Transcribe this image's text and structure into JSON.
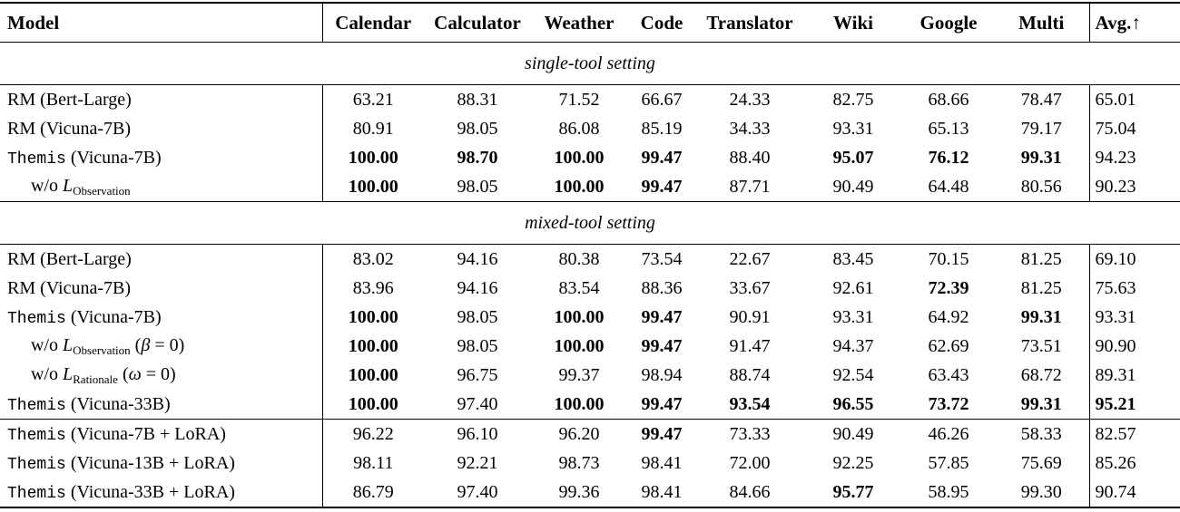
{
  "table": {
    "columns": [
      "Model",
      "Calendar",
      "Calculator",
      "Weather",
      "Code",
      "Translator",
      "Wiki",
      "Google",
      "Multi",
      "Avg.↑"
    ],
    "sections": [
      {
        "title": "single-tool setting",
        "rows": [
          {
            "indent": false,
            "segments": [
              {
                "t": "RM (Bert-Large)",
                "s": "rm"
              }
            ],
            "cells": [
              {
                "v": "63.21",
                "b": false
              },
              {
                "v": "88.31",
                "b": false
              },
              {
                "v": "71.52",
                "b": false
              },
              {
                "v": "66.67",
                "b": false
              },
              {
                "v": "24.33",
                "b": false
              },
              {
                "v": "82.75",
                "b": false
              },
              {
                "v": "68.66",
                "b": false
              },
              {
                "v": "78.47",
                "b": false
              },
              {
                "v": "65.01",
                "b": false
              }
            ]
          },
          {
            "indent": false,
            "segments": [
              {
                "t": "RM (Vicuna-7B)",
                "s": "rm"
              }
            ],
            "cells": [
              {
                "v": "80.91",
                "b": false
              },
              {
                "v": "98.05",
                "b": false
              },
              {
                "v": "86.08",
                "b": false
              },
              {
                "v": "85.19",
                "b": false
              },
              {
                "v": "34.33",
                "b": false
              },
              {
                "v": "93.31",
                "b": false
              },
              {
                "v": "65.13",
                "b": false
              },
              {
                "v": "79.17",
                "b": false
              },
              {
                "v": "75.04",
                "b": false
              }
            ]
          },
          {
            "indent": false,
            "segments": [
              {
                "t": "Themis",
                "s": "tt"
              },
              {
                "t": " (Vicuna-7B)",
                "s": "rm"
              }
            ],
            "cells": [
              {
                "v": "100.00",
                "b": true
              },
              {
                "v": "98.70",
                "b": true
              },
              {
                "v": "100.00",
                "b": true
              },
              {
                "v": "99.47",
                "b": true
              },
              {
                "v": "88.40",
                "b": false
              },
              {
                "v": "95.07",
                "b": true
              },
              {
                "v": "76.12",
                "b": true
              },
              {
                "v": "99.31",
                "b": true
              },
              {
                "v": "94.23",
                "b": false
              }
            ]
          },
          {
            "indent": true,
            "segments": [
              {
                "t": "w/o ",
                "s": "rm"
              },
              {
                "t": "L",
                "s": "it"
              },
              {
                "t": "Observation",
                "s": "sub"
              }
            ],
            "cells": [
              {
                "v": "100.00",
                "b": true
              },
              {
                "v": "98.05",
                "b": false
              },
              {
                "v": "100.00",
                "b": true
              },
              {
                "v": "99.47",
                "b": true
              },
              {
                "v": "87.71",
                "b": false
              },
              {
                "v": "90.49",
                "b": false
              },
              {
                "v": "64.48",
                "b": false
              },
              {
                "v": "80.56",
                "b": false
              },
              {
                "v": "90.23",
                "b": false
              }
            ]
          }
        ]
      },
      {
        "title": "mixed-tool setting",
        "rows": [
          {
            "indent": false,
            "segments": [
              {
                "t": "RM (Bert-Large)",
                "s": "rm"
              }
            ],
            "cells": [
              {
                "v": "83.02",
                "b": false
              },
              {
                "v": "94.16",
                "b": false
              },
              {
                "v": "80.38",
                "b": false
              },
              {
                "v": "73.54",
                "b": false
              },
              {
                "v": "22.67",
                "b": false
              },
              {
                "v": "83.45",
                "b": false
              },
              {
                "v": "70.15",
                "b": false
              },
              {
                "v": "81.25",
                "b": false
              },
              {
                "v": "69.10",
                "b": false
              }
            ]
          },
          {
            "indent": false,
            "segments": [
              {
                "t": "RM (Vicuna-7B)",
                "s": "rm"
              }
            ],
            "cells": [
              {
                "v": "83.96",
                "b": false
              },
              {
                "v": "94.16",
                "b": false
              },
              {
                "v": "83.54",
                "b": false
              },
              {
                "v": "88.36",
                "b": false
              },
              {
                "v": "33.67",
                "b": false
              },
              {
                "v": "92.61",
                "b": false
              },
              {
                "v": "72.39",
                "b": true
              },
              {
                "v": "81.25",
                "b": false
              },
              {
                "v": "75.63",
                "b": false
              }
            ]
          },
          {
            "indent": false,
            "segments": [
              {
                "t": "Themis",
                "s": "tt"
              },
              {
                "t": " (Vicuna-7B)",
                "s": "rm"
              }
            ],
            "cells": [
              {
                "v": "100.00",
                "b": true
              },
              {
                "v": "98.05",
                "b": false
              },
              {
                "v": "100.00",
                "b": true
              },
              {
                "v": "99.47",
                "b": true
              },
              {
                "v": "90.91",
                "b": false
              },
              {
                "v": "93.31",
                "b": false
              },
              {
                "v": "64.92",
                "b": false
              },
              {
                "v": "99.31",
                "b": true
              },
              {
                "v": "93.31",
                "b": false
              }
            ]
          },
          {
            "indent": true,
            "segments": [
              {
                "t": "w/o ",
                "s": "rm"
              },
              {
                "t": "L",
                "s": "it"
              },
              {
                "t": "Observation",
                "s": "sub"
              },
              {
                "t": " (",
                "s": "rm"
              },
              {
                "t": "β",
                "s": "it"
              },
              {
                "t": " = 0)",
                "s": "rm"
              }
            ],
            "cells": [
              {
                "v": "100.00",
                "b": true
              },
              {
                "v": "98.05",
                "b": false
              },
              {
                "v": "100.00",
                "b": true
              },
              {
                "v": "99.47",
                "b": true
              },
              {
                "v": "91.47",
                "b": false
              },
              {
                "v": "94.37",
                "b": false
              },
              {
                "v": "62.69",
                "b": false
              },
              {
                "v": "73.51",
                "b": false
              },
              {
                "v": "90.90",
                "b": false
              }
            ]
          },
          {
            "indent": true,
            "segments": [
              {
                "t": "w/o ",
                "s": "rm"
              },
              {
                "t": "L",
                "s": "it"
              },
              {
                "t": "Rationale",
                "s": "sub"
              },
              {
                "t": " (",
                "s": "rm"
              },
              {
                "t": "ω",
                "s": "it"
              },
              {
                "t": " = 0)",
                "s": "rm"
              }
            ],
            "cells": [
              {
                "v": "100.00",
                "b": true
              },
              {
                "v": "96.75",
                "b": false
              },
              {
                "v": "99.37",
                "b": false
              },
              {
                "v": "98.94",
                "b": false
              },
              {
                "v": "88.74",
                "b": false
              },
              {
                "v": "92.54",
                "b": false
              },
              {
                "v": "63.43",
                "b": false
              },
              {
                "v": "68.72",
                "b": false
              },
              {
                "v": "89.31",
                "b": false
              }
            ]
          },
          {
            "indent": false,
            "segments": [
              {
                "t": "Themis",
                "s": "tt"
              },
              {
                "t": " (Vicuna-33B)",
                "s": "rm"
              }
            ],
            "cells": [
              {
                "v": "100.00",
                "b": true
              },
              {
                "v": "97.40",
                "b": false
              },
              {
                "v": "100.00",
                "b": true
              },
              {
                "v": "99.47",
                "b": true
              },
              {
                "v": "93.54",
                "b": true
              },
              {
                "v": "96.55",
                "b": true
              },
              {
                "v": "73.72",
                "b": true
              },
              {
                "v": "99.31",
                "b": true
              },
              {
                "v": "95.21",
                "b": true
              }
            ]
          }
        ]
      },
      {
        "title": null,
        "rows": [
          {
            "indent": false,
            "segments": [
              {
                "t": "Themis",
                "s": "tt"
              },
              {
                "t": " (Vicuna-7B + LoRA)",
                "s": "rm"
              }
            ],
            "cells": [
              {
                "v": "96.22",
                "b": false
              },
              {
                "v": "96.10",
                "b": false
              },
              {
                "v": "96.20",
                "b": false
              },
              {
                "v": "99.47",
                "b": true
              },
              {
                "v": "73.33",
                "b": false
              },
              {
                "v": "90.49",
                "b": false
              },
              {
                "v": "46.26",
                "b": false
              },
              {
                "v": "58.33",
                "b": false
              },
              {
                "v": "82.57",
                "b": false
              }
            ]
          },
          {
            "indent": false,
            "segments": [
              {
                "t": "Themis",
                "s": "tt"
              },
              {
                "t": " (Vicuna-13B + LoRA)",
                "s": "rm"
              }
            ],
            "cells": [
              {
                "v": "98.11",
                "b": false
              },
              {
                "v": "92.21",
                "b": false
              },
              {
                "v": "98.73",
                "b": false
              },
              {
                "v": "98.41",
                "b": false
              },
              {
                "v": "72.00",
                "b": false
              },
              {
                "v": "92.25",
                "b": false
              },
              {
                "v": "57.85",
                "b": false
              },
              {
                "v": "75.69",
                "b": false
              },
              {
                "v": "85.26",
                "b": false
              }
            ]
          },
          {
            "indent": false,
            "segments": [
              {
                "t": "Themis",
                "s": "tt"
              },
              {
                "t": " (Vicuna-33B + LoRA)",
                "s": "rm"
              }
            ],
            "cells": [
              {
                "v": "86.79",
                "b": false
              },
              {
                "v": "97.40",
                "b": false
              },
              {
                "v": "99.36",
                "b": false
              },
              {
                "v": "98.41",
                "b": false
              },
              {
                "v": "84.66",
                "b": false
              },
              {
                "v": "95.77",
                "b": true
              },
              {
                "v": "58.95",
                "b": false
              },
              {
                "v": "99.30",
                "b": false
              },
              {
                "v": "90.74",
                "b": false
              }
            ]
          }
        ]
      }
    ]
  }
}
